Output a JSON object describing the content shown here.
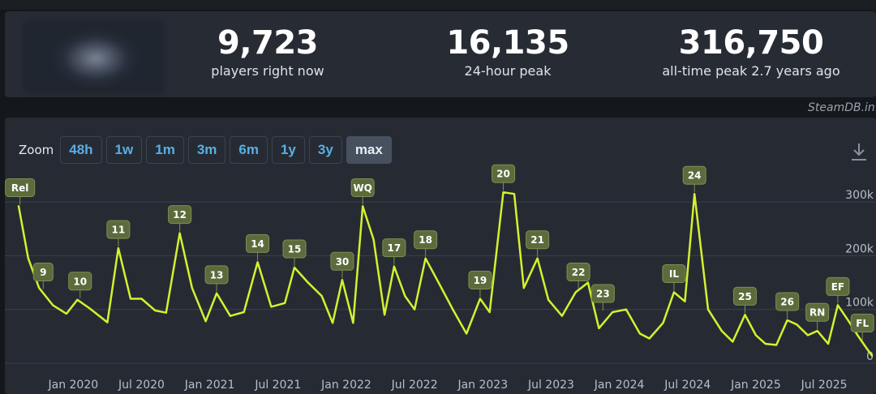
{
  "stats": [
    {
      "value": "9,723",
      "label": "players right now"
    },
    {
      "value": "16,135",
      "label": "24-hour peak"
    },
    {
      "value": "316,750",
      "label": "all-time peak 2.7 years ago"
    }
  ],
  "watermark": "SteamDB.info",
  "zoom": {
    "label": "Zoom",
    "buttons": [
      "48h",
      "1w",
      "1m",
      "3m",
      "6m",
      "1y",
      "3y",
      "max"
    ],
    "active": "max"
  },
  "icons": {
    "download": "download-icon",
    "thumbnail": "game-thumbnail"
  },
  "colors": {
    "line": "#d4f12e",
    "badge_bg": "#5b6b3c",
    "badge_border": "#7d8f53",
    "link": "#5aaee6"
  },
  "chart_data": {
    "type": "line",
    "x_start": 2019.6,
    "x_end": 2025.85,
    "ylim": [
      0,
      350000
    ],
    "y_ticks": [
      0,
      100000,
      200000,
      300000
    ],
    "y_tick_labels": [
      "0",
      "100k",
      "200k",
      "300k"
    ],
    "x_ticks": [
      {
        "label": "Jan 2020",
        "t": 2020.0
      },
      {
        "label": "Jul 2020",
        "t": 2020.5
      },
      {
        "label": "Jan 2021",
        "t": 2021.0
      },
      {
        "label": "Jul 2021",
        "t": 2021.5
      },
      {
        "label": "Jan 2022",
        "t": 2022.0
      },
      {
        "label": "Jul 2022",
        "t": 2022.5
      },
      {
        "label": "Jan 2023",
        "t": 2023.0
      },
      {
        "label": "Jul 2023",
        "t": 2023.5
      },
      {
        "label": "Jan 2024",
        "t": 2024.0
      },
      {
        "label": "Jul 2024",
        "t": 2024.5
      },
      {
        "label": "Jan 2025",
        "t": 2025.0
      },
      {
        "label": "Jul 2025",
        "t": 2025.5
      }
    ],
    "series": [
      {
        "name": "Players",
        "points": [
          [
            2019.6,
            292000
          ],
          [
            2019.67,
            195000
          ],
          [
            2019.75,
            140000
          ],
          [
            2019.85,
            108000
          ],
          [
            2019.95,
            92000
          ],
          [
            2020.03,
            118000
          ],
          [
            2020.12,
            102000
          ],
          [
            2020.25,
            76000
          ],
          [
            2020.33,
            214000
          ],
          [
            2020.42,
            120000
          ],
          [
            2020.5,
            120000
          ],
          [
            2020.6,
            98000
          ],
          [
            2020.68,
            94000
          ],
          [
            2020.78,
            242000
          ],
          [
            2020.87,
            140000
          ],
          [
            2020.97,
            78000
          ],
          [
            2021.05,
            130000
          ],
          [
            2021.15,
            88000
          ],
          [
            2021.25,
            95000
          ],
          [
            2021.35,
            188000
          ],
          [
            2021.45,
            105000
          ],
          [
            2021.55,
            112000
          ],
          [
            2021.62,
            178000
          ],
          [
            2021.72,
            150000
          ],
          [
            2021.82,
            125000
          ],
          [
            2021.9,
            75000
          ],
          [
            2021.97,
            155000
          ],
          [
            2022.05,
            75000
          ],
          [
            2022.12,
            292000
          ],
          [
            2022.2,
            230000
          ],
          [
            2022.28,
            90000
          ],
          [
            2022.35,
            180000
          ],
          [
            2022.43,
            125000
          ],
          [
            2022.5,
            100000
          ],
          [
            2022.58,
            195000
          ],
          [
            2022.68,
            148000
          ],
          [
            2022.78,
            100000
          ],
          [
            2022.88,
            55000
          ],
          [
            2022.98,
            120000
          ],
          [
            2023.05,
            95000
          ],
          [
            2023.15,
            318000
          ],
          [
            2023.23,
            315000
          ],
          [
            2023.3,
            140000
          ],
          [
            2023.4,
            195000
          ],
          [
            2023.48,
            118000
          ],
          [
            2023.58,
            88000
          ],
          [
            2023.68,
            132000
          ],
          [
            2023.77,
            150000
          ],
          [
            2023.85,
            65000
          ],
          [
            2023.95,
            95000
          ],
          [
            2024.05,
            100000
          ],
          [
            2024.15,
            55000
          ],
          [
            2024.22,
            46000
          ],
          [
            2024.32,
            75000
          ],
          [
            2024.4,
            132000
          ],
          [
            2024.48,
            115000
          ],
          [
            2024.55,
            315000
          ],
          [
            2024.65,
            100000
          ],
          [
            2024.75,
            60000
          ],
          [
            2024.83,
            40000
          ],
          [
            2024.92,
            90000
          ],
          [
            2025.0,
            52000
          ],
          [
            2025.07,
            36000
          ],
          [
            2025.15,
            34000
          ],
          [
            2025.23,
            80000
          ],
          [
            2025.3,
            72000
          ],
          [
            2025.38,
            52000
          ],
          [
            2025.45,
            60000
          ],
          [
            2025.53,
            36000
          ],
          [
            2025.6,
            108000
          ],
          [
            2025.68,
            78000
          ],
          [
            2025.75,
            50000
          ],
          [
            2025.81,
            28000
          ],
          [
            2025.85,
            14000
          ]
        ]
      }
    ],
    "annotations": [
      {
        "label": "Rel",
        "t": 2019.61,
        "y": 292000
      },
      {
        "label": "9",
        "t": 2019.78,
        "y": 135000
      },
      {
        "label": "10",
        "t": 2020.05,
        "y": 118000
      },
      {
        "label": "11",
        "t": 2020.33,
        "y": 214000
      },
      {
        "label": "12",
        "t": 2020.78,
        "y": 242000
      },
      {
        "label": "13",
        "t": 2021.05,
        "y": 130000
      },
      {
        "label": "14",
        "t": 2021.35,
        "y": 188000
      },
      {
        "label": "15",
        "t": 2021.62,
        "y": 178000
      },
      {
        "label": "30",
        "t": 2021.97,
        "y": 155000
      },
      {
        "label": "WQ",
        "t": 2022.12,
        "y": 292000
      },
      {
        "label": "17",
        "t": 2022.35,
        "y": 180000
      },
      {
        "label": "18",
        "t": 2022.58,
        "y": 195000
      },
      {
        "label": "19",
        "t": 2022.98,
        "y": 120000
      },
      {
        "label": "20",
        "t": 2023.15,
        "y": 318000
      },
      {
        "label": "21",
        "t": 2023.4,
        "y": 195000
      },
      {
        "label": "22",
        "t": 2023.7,
        "y": 135000
      },
      {
        "label": "23",
        "t": 2023.88,
        "y": 95000
      },
      {
        "label": "IL",
        "t": 2024.4,
        "y": 132000
      },
      {
        "label": "24",
        "t": 2024.55,
        "y": 315000
      },
      {
        "label": "25",
        "t": 2024.92,
        "y": 90000
      },
      {
        "label": "26",
        "t": 2025.23,
        "y": 80000
      },
      {
        "label": "RN",
        "t": 2025.45,
        "y": 60000
      },
      {
        "label": "EF",
        "t": 2025.6,
        "y": 108000
      },
      {
        "label": "FL",
        "t": 2025.78,
        "y": 40000
      }
    ]
  }
}
